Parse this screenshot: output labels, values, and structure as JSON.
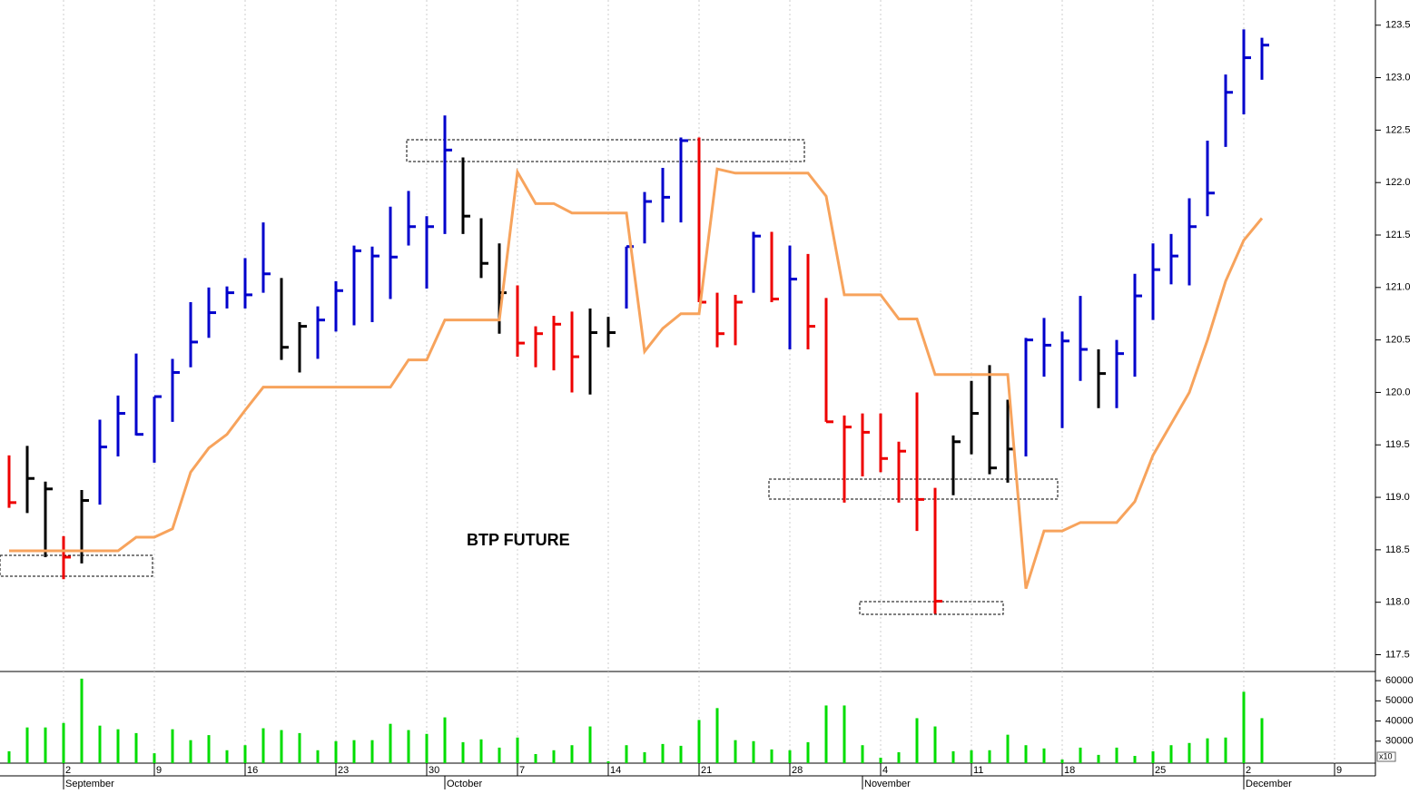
{
  "chart_data": [
    {
      "type": "hlc",
      "title": "BTP FUTURE",
      "xlim": [
        -0.5,
        75.25
      ],
      "xticks": [
        {
          "value": 3,
          "label": "2"
        },
        {
          "value": 8,
          "label": "9"
        },
        {
          "value": 13,
          "label": "16"
        },
        {
          "value": 18,
          "label": "23"
        },
        {
          "value": 23,
          "label": "30"
        },
        {
          "value": 28,
          "label": "7"
        },
        {
          "value": 33,
          "label": "14"
        },
        {
          "value": 38,
          "label": "21"
        },
        {
          "value": 43,
          "label": "28"
        },
        {
          "value": 48,
          "label": "4"
        },
        {
          "value": 53,
          "label": "11"
        },
        {
          "value": 58,
          "label": "18"
        },
        {
          "value": 63,
          "label": "25"
        },
        {
          "value": 68,
          "label": "2"
        },
        {
          "value": 73,
          "label": "9"
        }
      ],
      "month_labels": [
        {
          "value": 3,
          "label": "September"
        },
        {
          "value": 24,
          "label": "October"
        },
        {
          "value": 47,
          "label": "November"
        },
        {
          "value": 68,
          "label": "December"
        }
      ],
      "ylim": [
        117.34,
        123.74
      ],
      "yticks": [
        117.5,
        {
          "value": 118,
          "label": "118.0"
        },
        118.5,
        {
          "value": 119,
          "label": "119.0"
        },
        119.5,
        {
          "value": 120,
          "label": "120.0"
        },
        120.5,
        {
          "value": 121,
          "label": "121.0"
        },
        121.5,
        {
          "value": 122,
          "label": "122.0"
        },
        122.5,
        {
          "value": 123,
          "label": "123.0"
        },
        123.5
      ],
      "high": [
        119.4,
        119.49,
        119.15,
        118.63,
        119.07,
        119.74,
        119.97,
        120.37,
        119.96,
        120.32,
        120.86,
        121.0,
        121.01,
        121.28,
        121.62,
        121.09,
        120.67,
        120.82,
        121.06,
        121.4,
        121.39,
        121.77,
        121.92,
        121.68,
        122.64,
        122.24,
        121.66,
        121.42,
        121.02,
        120.63,
        120.73,
        120.77,
        120.8,
        120.72,
        121.39,
        121.91,
        122.14,
        122.43,
        122.43,
        120.95,
        120.93,
        121.53,
        121.53,
        121.4,
        121.32,
        120.9,
        119.78,
        119.8,
        119.8,
        119.53,
        120.0,
        119.09,
        119.59,
        120.11,
        120.26,
        119.93,
        120.52,
        120.71,
        120.58,
        120.92,
        120.41,
        120.5,
        121.13,
        121.42,
        121.51,
        121.85,
        122.4,
        123.03,
        123.46,
        123.38
      ],
      "low": [
        118.9,
        118.85,
        118.43,
        118.22,
        118.37,
        118.93,
        119.39,
        119.59,
        119.33,
        119.72,
        120.24,
        120.52,
        120.8,
        120.8,
        120.95,
        120.31,
        120.19,
        120.32,
        120.58,
        120.64,
        120.67,
        120.89,
        121.4,
        120.99,
        121.51,
        121.51,
        121.09,
        120.56,
        120.34,
        120.24,
        120.21,
        120.0,
        119.98,
        120.43,
        120.8,
        121.42,
        121.62,
        121.62,
        120.86,
        120.43,
        120.45,
        120.95,
        120.86,
        120.41,
        120.41,
        119.72,
        118.95,
        119.2,
        119.24,
        118.95,
        118.68,
        117.89,
        119.02,
        119.41,
        119.22,
        119.14,
        119.39,
        120.15,
        119.66,
        120.11,
        119.85,
        119.85,
        120.15,
        120.69,
        121.03,
        121.02,
        121.68,
        122.34,
        122.65,
        122.98
      ],
      "close": [
        118.95,
        119.18,
        119.08,
        118.43,
        118.97,
        119.48,
        119.8,
        119.6,
        119.96,
        120.19,
        120.48,
        120.76,
        120.95,
        120.93,
        121.13,
        120.43,
        120.63,
        120.69,
        120.97,
        121.35,
        121.3,
        121.29,
        121.58,
        121.58,
        122.31,
        121.68,
        121.23,
        120.95,
        120.47,
        120.56,
        120.65,
        120.34,
        120.57,
        120.57,
        121.39,
        121.82,
        121.86,
        122.4,
        120.86,
        120.56,
        120.86,
        121.49,
        120.89,
        121.08,
        120.63,
        119.72,
        119.67,
        119.62,
        119.37,
        119.44,
        118.98,
        118.01,
        119.53,
        119.8,
        119.28,
        119.46,
        120.5,
        120.45,
        120.49,
        120.41,
        120.18,
        120.37,
        120.92,
        121.17,
        121.3,
        121.58,
        121.9,
        122.86,
        123.19,
        123.31
      ],
      "bar_colors": [
        "#ee0000",
        "#000000",
        "#000000",
        "#ee0000",
        "#000000",
        "#0000cc",
        "#0000cc",
        "#0000cc",
        "#0000cc",
        "#0000cc",
        "#0000cc",
        "#0000cc",
        "#0000cc",
        "#0000cc",
        "#0000cc",
        "#000000",
        "#000000",
        "#0000cc",
        "#0000cc",
        "#0000cc",
        "#0000cc",
        "#0000cc",
        "#0000cc",
        "#0000cc",
        "#0000cc",
        "#000000",
        "#000000",
        "#000000",
        "#ee0000",
        "#ee0000",
        "#ee0000",
        "#ee0000",
        "#000000",
        "#000000",
        "#0000cc",
        "#0000cc",
        "#0000cc",
        "#0000cc",
        "#ee0000",
        "#ee0000",
        "#ee0000",
        "#0000cc",
        "#ee0000",
        "#0000cc",
        "#ee0000",
        "#ee0000",
        "#ee0000",
        "#ee0000",
        "#ee0000",
        "#ee0000",
        "#ee0000",
        "#ee0000",
        "#000000",
        "#000000",
        "#000000",
        "#000000",
        "#0000cc",
        "#0000cc",
        "#0000cc",
        "#0000cc",
        "#000000",
        "#0000cc",
        "#0000cc",
        "#0000cc",
        "#0000cc",
        "#0000cc",
        "#0000cc",
        "#0000cc",
        "#0000cc",
        "#0000cc"
      ],
      "line": {
        "color": "#f7a35c",
        "values": [
          118.49,
          118.49,
          118.49,
          118.49,
          118.49,
          118.49,
          118.49,
          118.62,
          118.62,
          118.7,
          119.24,
          119.47,
          119.6,
          119.83,
          120.05,
          120.05,
          120.05,
          120.05,
          120.05,
          120.05,
          120.05,
          120.05,
          120.31,
          120.31,
          120.69,
          120.69,
          120.69,
          120.69,
          122.1,
          121.8,
          121.8,
          121.71,
          121.71,
          121.71,
          121.71,
          120.39,
          120.61,
          120.75,
          120.75,
          122.13,
          122.09,
          122.09,
          122.09,
          122.09,
          122.09,
          121.87,
          120.93,
          120.93,
          120.93,
          120.7,
          120.7,
          120.17,
          120.17,
          120.17,
          120.17,
          120.17,
          118.13,
          118.68,
          118.68,
          118.76,
          118.76,
          118.76,
          118.96,
          119.4,
          119.7,
          120.0,
          120.5,
          121.06,
          121.45,
          121.66
        ]
      }
    },
    {
      "type": "bar",
      "color": "#00dd00",
      "unit_label": "x10",
      "ylim": [
        19100,
        64100
      ],
      "yticks": [
        30000,
        40000,
        50000,
        60000
      ],
      "values": [
        25000,
        36800,
        36800,
        39000,
        61000,
        37700,
        35900,
        34000,
        24000,
        35900,
        30500,
        33000,
        25500,
        28000,
        36400,
        35500,
        34000,
        25500,
        30000,
        30500,
        30500,
        38600,
        35500,
        33600,
        41800,
        29500,
        30900,
        26800,
        31800,
        23600,
        25500,
        28000,
        37300,
        20000,
        28000,
        24500,
        28600,
        27700,
        40500,
        46400,
        30500,
        30000,
        25900,
        25500,
        29500,
        47700,
        47700,
        28000,
        21800,
        24500,
        41400,
        37300,
        25000,
        25500,
        25500,
        33200,
        28000,
        26400,
        20900,
        26800,
        23200,
        26800,
        22700,
        25000,
        28000,
        29100,
        31400,
        31800,
        54500,
        41400
      ]
    }
  ]
}
